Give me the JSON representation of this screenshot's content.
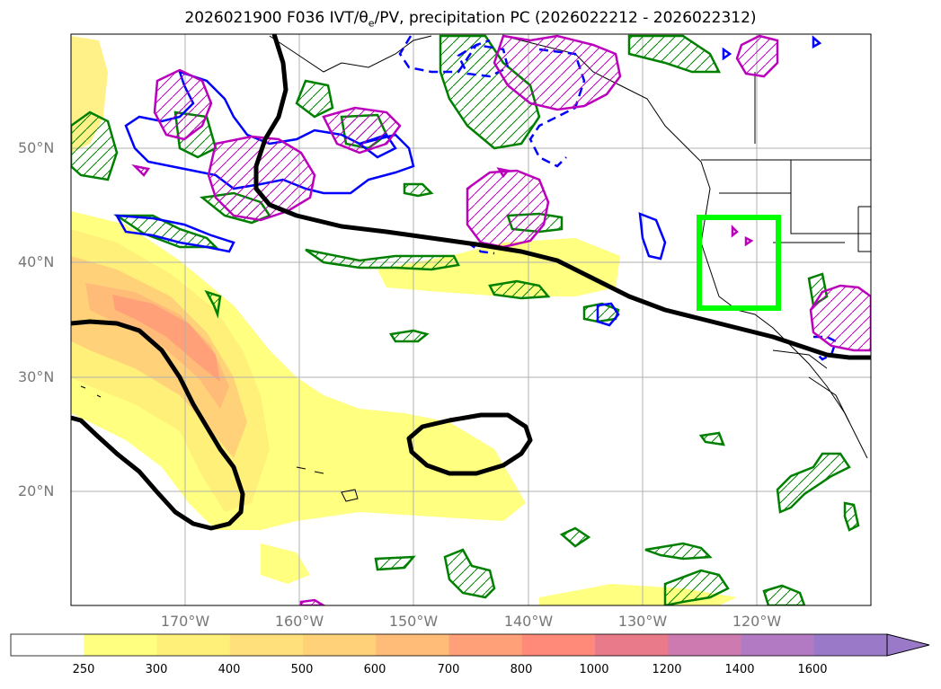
{
  "title": {
    "prefix": "2026021900 F036 IVT/θ",
    "sub": "e",
    "suffix": "/PV, precipitation PC (2026022212 - 2026022312)"
  },
  "map": {
    "lat_labels": [
      "50°N",
      "40°N",
      "30°N",
      "20°N"
    ],
    "lon_labels": [
      "170°W",
      "160°W",
      "150°W",
      "140°W",
      "130°W",
      "120°W"
    ],
    "region_box_color": "#00ff00",
    "contour_colors": {
      "pv": "#000000",
      "precip_pc": "#008000",
      "theta_e_positive": "#0000ff",
      "theta_e_anomaly": "#bb00bb"
    }
  },
  "colorbar": {
    "levels": [
      "250",
      "300",
      "400",
      "500",
      "600",
      "700",
      "800",
      "1000",
      "1200",
      "1400",
      "1600"
    ],
    "colors": [
      "#ffffff",
      "#ffff80",
      "#fff07a",
      "#ffe07a",
      "#ffd27a",
      "#ffbb78",
      "#ffa078",
      "#ff8a7a",
      "#e87a8a",
      "#cc7ab0",
      "#b27ac2",
      "#9a7ac8"
    ]
  }
}
